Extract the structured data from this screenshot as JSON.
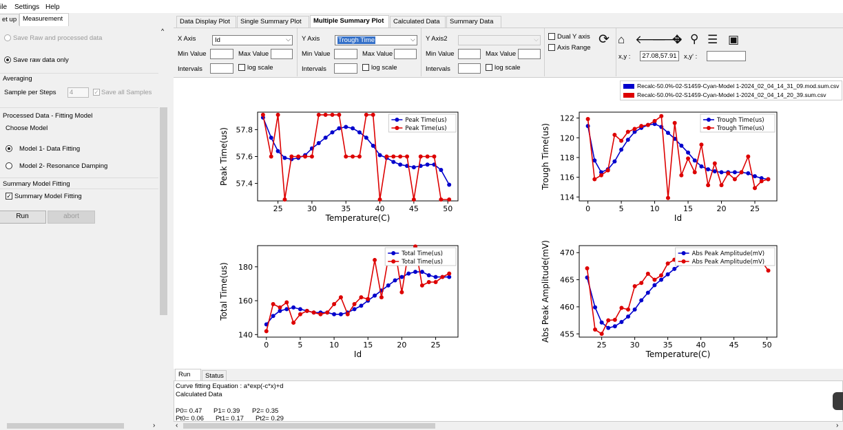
{
  "menu": {
    "file": "ile",
    "settings": "Settings",
    "help": "Help"
  },
  "left_tabs": {
    "setup": "et up",
    "measurement": "Measurement"
  },
  "left_panel": {
    "save_raw_processed": "Save Raw and processed data",
    "save_raw_only": "Save raw data only",
    "averaging_title": "Averaging",
    "sample_per_steps_label": "Sample per Steps",
    "sample_per_steps_value": "4",
    "save_all_samples": "Save all Samples",
    "processed_title": "Processed Data - Fitting Model",
    "choose_model": "Choose Model",
    "model1": "Model 1- Data Fitting",
    "model2": "Model 2- Resonance Damping",
    "summary_title": "Summary Model Fitting",
    "summary_check": "Summary Model Fitting",
    "run": "Run",
    "abort": "abort"
  },
  "right_tabs": [
    "Data Display Plot",
    "Single Summary Plot",
    "Multiple Summary Plot",
    "Calculated Data",
    "Summary Data"
  ],
  "controls": {
    "x_axis_label": "X Axis",
    "x_axis_value": "Id",
    "y_axis_label": "Y Axis",
    "y_axis_value": "Trough Time",
    "y_axis2_label": "Y Axis2",
    "y_axis2_value": "",
    "min_value": "Min Value",
    "max_value": "Max Value",
    "intervals": "Intervals",
    "log_scale": "log scale",
    "dual_y": "Dual Y axis",
    "axis_range": "Axis Range",
    "xy_label": "x,y :",
    "xy_value": "27.08,57.91",
    "xy_prime_label": "x,y' :",
    "xy_prime_value": ""
  },
  "legend_files": [
    {
      "name": "Recalc-50.0%-02-S1459-Cyan-Model 1-2024_02_04_14_31_09.mod.sum.csv",
      "color": "#0000cc"
    },
    {
      "name": "Recalc-50.0%-02-S1459-Cyan-Model 1-2024_02_04_14_20_39.sum.csv",
      "color": "#dd0000"
    }
  ],
  "bottom_tabs": {
    "run": "Run",
    "status": "Status"
  },
  "console": {
    "line1": "Curve fitting Equation : a*exp(-c*x)+d",
    "line2": "Calculated Data",
    "p0": "P0= 0.47",
    "p1": "P1= 0.39",
    "p2": "P2= 0.35",
    "pt0": "Pt0= 0.06",
    "pt1": "Pt1= 0.17",
    "pt2": "Pt2= 0.29"
  },
  "colors": {
    "series_blue": "#0000cc",
    "series_red": "#dd0000"
  },
  "chart_data": [
    {
      "type": "line",
      "title": "",
      "xlabel": "Temperature(C)",
      "ylabel": "Peak Time(us)",
      "xlim": [
        22,
        51.5
      ],
      "ylim": [
        57.27,
        57.93
      ],
      "xticks": [
        25,
        30,
        35,
        40,
        45,
        50
      ],
      "yticks": [
        57.4,
        57.6,
        57.8
      ],
      "ytick_labels": [
        "57.4",
        "57.6",
        "57.8"
      ],
      "legend": "top-right",
      "series": [
        {
          "name": "Peak Time(us)",
          "color": "#0000cc",
          "x": [
            22.8,
            24,
            25,
            26,
            27,
            28,
            29,
            30,
            31,
            32,
            33,
            34,
            35,
            36,
            37,
            38,
            39,
            40,
            41,
            42,
            43,
            44,
            45,
            46,
            47,
            48,
            49,
            50.2
          ],
          "y": [
            57.89,
            57.74,
            57.64,
            57.59,
            57.58,
            57.59,
            57.61,
            57.66,
            57.7,
            57.74,
            57.78,
            57.81,
            57.82,
            57.81,
            57.78,
            57.74,
            57.68,
            57.61,
            57.59,
            57.56,
            57.54,
            57.53,
            57.52,
            57.53,
            57.54,
            57.54,
            57.5,
            57.39
          ]
        },
        {
          "name": "Peak Time(us)",
          "color": "#dd0000",
          "x": [
            22.8,
            24,
            25,
            26,
            27,
            28,
            29,
            30,
            31,
            32,
            33,
            34,
            35,
            36,
            37,
            38,
            39,
            40,
            41,
            42,
            43,
            44,
            45,
            46,
            47,
            48,
            49,
            50.2
          ],
          "y": [
            57.91,
            57.6,
            57.91,
            57.28,
            57.6,
            57.6,
            57.6,
            57.6,
            57.91,
            57.91,
            57.91,
            57.91,
            57.6,
            57.6,
            57.6,
            57.91,
            57.91,
            57.28,
            57.6,
            57.6,
            57.6,
            57.6,
            57.28,
            57.6,
            57.6,
            57.6,
            57.28,
            57.28
          ]
        }
      ]
    },
    {
      "type": "line",
      "title": "",
      "xlabel": "Id",
      "ylabel": "Trough Time(us)",
      "xlim": [
        -1.3,
        28.3
      ],
      "ylim": [
        113.6,
        122.6
      ],
      "xticks": [
        0,
        5,
        10,
        15,
        20,
        25
      ],
      "yticks": [
        114,
        116,
        118,
        120,
        122
      ],
      "legend": "top-right",
      "series": [
        {
          "name": "Trough Time(us)",
          "color": "#0000cc",
          "x": [
            0,
            1,
            2,
            3,
            4,
            5,
            6,
            7,
            8,
            9,
            10,
            11,
            12,
            13,
            14,
            15,
            16,
            17,
            18,
            19,
            20,
            21,
            22,
            23,
            24,
            25,
            26,
            27
          ],
          "y": [
            121.2,
            117.7,
            116.5,
            116.8,
            117.6,
            118.8,
            119.8,
            120.6,
            121.0,
            121.3,
            121.4,
            121.1,
            120.5,
            119.9,
            119.2,
            118.5,
            117.7,
            117.1,
            116.8,
            116.6,
            116.5,
            116.5,
            116.5,
            116.5,
            116.4,
            116.1,
            115.9,
            115.8
          ]
        },
        {
          "name": "Trough Time(us)",
          "color": "#dd0000",
          "x": [
            0,
            1,
            2,
            3,
            4,
            5,
            6,
            7,
            8,
            9,
            10,
            11,
            12,
            13,
            14,
            15,
            16,
            17,
            18,
            19,
            20,
            21,
            22,
            23,
            24,
            25,
            26,
            27
          ],
          "y": [
            121.9,
            115.8,
            116.2,
            116.7,
            120.3,
            119.7,
            120.6,
            120.9,
            121.2,
            121.3,
            121.7,
            122.2,
            113.9,
            121.5,
            116.2,
            117.9,
            116.5,
            119.3,
            115.2,
            117.4,
            115.2,
            116.4,
            115.8,
            116.5,
            118.1,
            114.9,
            115.6,
            115.8
          ]
        }
      ]
    },
    {
      "type": "line",
      "title": "",
      "xlabel": "Id",
      "ylabel": "Total Time(us)",
      "xlim": [
        -1.3,
        28.3
      ],
      "ylim": [
        138.5,
        192.5
      ],
      "xticks": [
        0,
        5,
        10,
        15,
        20,
        25
      ],
      "yticks": [
        140,
        160,
        180
      ],
      "legend": "top-right",
      "series": [
        {
          "name": "Total Time(us)",
          "color": "#0000cc",
          "x": [
            0,
            1,
            2,
            3,
            4,
            5,
            6,
            7,
            8,
            9,
            10,
            11,
            12,
            13,
            14,
            15,
            16,
            17,
            18,
            19,
            20,
            21,
            22,
            23,
            24,
            25,
            26,
            27
          ],
          "y": [
            146,
            151,
            154,
            155,
            156,
            155,
            154,
            153,
            153,
            153,
            152,
            152,
            153,
            155,
            157,
            160,
            163,
            166,
            169,
            172,
            174,
            176,
            177,
            177,
            175,
            174,
            174,
            174
          ]
        },
        {
          "name": "Total Time(us)",
          "color": "#dd0000",
          "x": [
            0,
            1,
            2,
            3,
            4,
            5,
            6,
            7,
            8,
            9,
            10,
            11,
            12,
            13,
            14,
            15,
            16,
            17,
            18,
            19,
            20,
            21,
            22,
            23,
            24,
            25,
            26,
            27
          ],
          "y": [
            142,
            158,
            156,
            159,
            147,
            152,
            154,
            153,
            152,
            153,
            158,
            162,
            152,
            158,
            162,
            161,
            184,
            162,
            185,
            190,
            165,
            189,
            192,
            169,
            171,
            171,
            174,
            176
          ]
        }
      ]
    },
    {
      "type": "line",
      "title": "",
      "xlabel": "Temperature(C)",
      "ylabel": "Abs Peak Amplitude(mV)",
      "xlim": [
        21.6,
        51.5
      ],
      "ylim": [
        454.4,
        471.3
      ],
      "xticks": [
        25,
        30,
        35,
        40,
        45,
        50
      ],
      "yticks": [
        455,
        460,
        465,
        470
      ],
      "legend": "top-right",
      "series": [
        {
          "name": "Abs Peak Amplitude(mV)",
          "color": "#0000cc",
          "x": [
            22.8,
            24,
            25,
            26,
            27,
            28,
            29,
            30,
            31,
            32,
            33,
            34,
            35,
            36,
            37,
            38,
            39,
            40,
            41,
            42,
            43,
            44,
            45,
            46,
            47,
            48,
            49,
            50.2
          ],
          "y": [
            465.4,
            459.9,
            457.1,
            456.1,
            456.4,
            457.2,
            458.2,
            459.5,
            461.2,
            462.6,
            464.0,
            465.0,
            466.0,
            467.0,
            467.9,
            468.6,
            469.1,
            469.5,
            469.7,
            469.8,
            469.9,
            469.9,
            469.8,
            469.7,
            469.6,
            469.5,
            469.2,
            469.0
          ]
        },
        {
          "name": "Abs Peak Amplitude(mV)",
          "color": "#dd0000",
          "x": [
            22.8,
            24,
            25,
            26,
            27,
            28,
            29,
            30,
            31,
            32,
            33,
            34,
            35,
            36,
            37,
            38,
            39,
            40,
            41,
            42,
            43,
            44,
            45,
            46,
            47,
            48,
            49,
            50.2
          ],
          "y": [
            467.1,
            455.8,
            455.0,
            457.5,
            457.6,
            459.8,
            459.5,
            463.8,
            464.4,
            466.1,
            465.0,
            465.8,
            468.0,
            468.7,
            468.3,
            469.6,
            469.1,
            469.3,
            468.9,
            468.7,
            469.7,
            469.2,
            470.6,
            469.8,
            469.1,
            469.2,
            468.7,
            466.7
          ]
        }
      ]
    }
  ]
}
